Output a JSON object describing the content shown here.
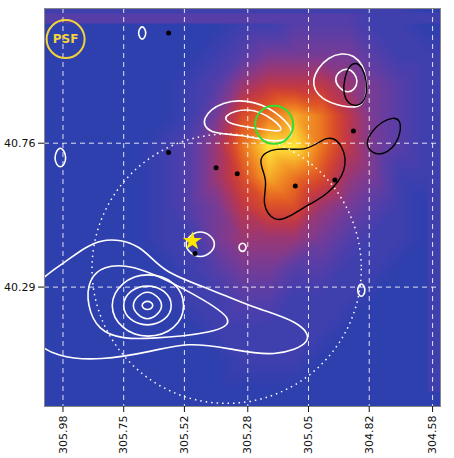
{
  "chart_data": {
    "type": "heatmap",
    "xlim": [
      306.05,
      304.55
    ],
    "ylim": [
      39.9,
      41.2
    ],
    "xticks": [
      305.98,
      305.75,
      305.52,
      305.28,
      305.05,
      304.82,
      304.58
    ],
    "yticks": [
      40.29,
      40.76
    ],
    "grid": true,
    "cells": {
      "x": [
        306.0,
        305.9,
        305.8,
        305.7,
        305.6,
        305.5,
        305.4,
        305.3,
        305.2,
        305.1,
        305.0,
        304.9,
        304.8,
        304.7,
        304.6
      ],
      "y": [
        41.15,
        41.05,
        40.95,
        40.85,
        40.75,
        40.65,
        40.55,
        40.45,
        40.35,
        40.25,
        40.15,
        40.05,
        39.95
      ],
      "values": [
        [
          1,
          1,
          1,
          1,
          1,
          1,
          1,
          2,
          2,
          3,
          3,
          3,
          2,
          2,
          1
        ],
        [
          1,
          1,
          1,
          1,
          1,
          1,
          2,
          3,
          4,
          4,
          4,
          4,
          3,
          2,
          2
        ],
        [
          1,
          1,
          1,
          1,
          1,
          2,
          3,
          5,
          6,
          6,
          6,
          5,
          4,
          3,
          2
        ],
        [
          1,
          1,
          1,
          1,
          1,
          2,
          4,
          7,
          8,
          9,
          8,
          6,
          4,
          3,
          2
        ],
        [
          1,
          1,
          1,
          1,
          2,
          3,
          5,
          8,
          10,
          10,
          8,
          6,
          4,
          3,
          2
        ],
        [
          1,
          1,
          1,
          1,
          2,
          3,
          5,
          7,
          9,
          8,
          7,
          5,
          4,
          2,
          2
        ],
        [
          1,
          1,
          1,
          1,
          2,
          3,
          4,
          6,
          7,
          7,
          5,
          4,
          3,
          2,
          1
        ],
        [
          1,
          1,
          1,
          1,
          2,
          2,
          4,
          5,
          5,
          5,
          4,
          3,
          2,
          2,
          1
        ],
        [
          1,
          1,
          1,
          1,
          1,
          2,
          3,
          4,
          4,
          3,
          3,
          2,
          2,
          1,
          1
        ],
        [
          1,
          1,
          1,
          1,
          1,
          2,
          2,
          3,
          3,
          2,
          2,
          2,
          1,
          1,
          1
        ],
        [
          1,
          1,
          1,
          1,
          1,
          1,
          2,
          2,
          2,
          2,
          2,
          1,
          1,
          1,
          1
        ],
        [
          1,
          1,
          1,
          1,
          1,
          1,
          1,
          2,
          2,
          2,
          1,
          1,
          1,
          1,
          1
        ],
        [
          1,
          1,
          1,
          1,
          1,
          1,
          1,
          1,
          1,
          1,
          1,
          1,
          1,
          1,
          1
        ]
      ]
    },
    "white_contours": {
      "color": "#ffffff",
      "rings": [
        [
          [
            306.12,
            40.29
          ],
          [
            305.97,
            40.37
          ],
          [
            305.84,
            40.46
          ],
          [
            305.68,
            40.43
          ],
          [
            305.61,
            40.34
          ],
          [
            305.41,
            40.28
          ],
          [
            305.25,
            40.22
          ],
          [
            305.09,
            40.18
          ],
          [
            305.02,
            40.11
          ],
          [
            305.18,
            40.06
          ],
          [
            305.35,
            40.09
          ],
          [
            305.51,
            40.11
          ],
          [
            305.64,
            40.08
          ],
          [
            305.84,
            40.05
          ],
          [
            306.0,
            40.06
          ],
          [
            306.12,
            40.12
          ]
        ],
        [
          [
            305.91,
            40.34
          ],
          [
            305.74,
            40.38
          ],
          [
            305.51,
            40.28
          ],
          [
            305.31,
            40.18
          ],
          [
            305.41,
            40.14
          ],
          [
            305.64,
            40.12
          ],
          [
            305.87,
            40.12
          ]
        ],
        [
          [
            305.51,
            40.23
          ],
          [
            305.55,
            40.31
          ],
          [
            305.66,
            40.34
          ],
          [
            305.76,
            40.31
          ],
          [
            305.81,
            40.23
          ],
          [
            305.76,
            40.15
          ],
          [
            305.66,
            40.12
          ],
          [
            305.55,
            40.15
          ]
        ],
        [
          [
            305.56,
            40.23
          ],
          [
            305.59,
            40.28
          ],
          [
            305.66,
            40.3
          ],
          [
            305.73,
            40.28
          ],
          [
            305.76,
            40.23
          ],
          [
            305.73,
            40.18
          ],
          [
            305.66,
            40.16
          ],
          [
            305.59,
            40.18
          ]
        ],
        [
          [
            305.6,
            40.23
          ],
          [
            305.62,
            40.26
          ],
          [
            305.66,
            40.28
          ],
          [
            305.7,
            40.26
          ],
          [
            305.72,
            40.23
          ],
          [
            305.7,
            40.2
          ],
          [
            305.66,
            40.18
          ],
          [
            305.62,
            40.2
          ]
        ],
        [
          [
            305.63,
            40.23
          ],
          [
            305.66,
            40.25
          ],
          [
            305.69,
            40.23
          ],
          [
            305.66,
            40.21
          ]
        ],
        [
          [
            305.46,
            40.84
          ],
          [
            305.38,
            40.9
          ],
          [
            305.25,
            40.9
          ],
          [
            305.15,
            40.85
          ],
          [
            305.09,
            40.78
          ],
          [
            305.18,
            40.76
          ],
          [
            305.31,
            40.79
          ],
          [
            305.43,
            40.79
          ]
        ],
        [
          [
            305.38,
            40.85
          ],
          [
            305.28,
            40.88
          ],
          [
            305.18,
            40.84
          ],
          [
            305.13,
            40.79
          ],
          [
            305.25,
            40.81
          ],
          [
            305.35,
            40.82
          ]
        ],
        [
          [
            305.05,
            40.96
          ],
          [
            304.98,
            41.05
          ],
          [
            304.87,
            41.06
          ],
          [
            304.82,
            40.97
          ],
          [
            304.84,
            40.87
          ],
          [
            304.92,
            40.88
          ],
          [
            305.0,
            40.9
          ]
        ],
        [
          [
            304.97,
            40.97
          ],
          [
            304.9,
            41.02
          ],
          [
            304.85,
            40.96
          ],
          [
            304.9,
            40.91
          ]
        ],
        [
          [
            305.66,
            41.12
          ],
          [
            305.68,
            41.15
          ],
          [
            305.7,
            41.12
          ],
          [
            305.68,
            41.09
          ]
        ],
        [
          [
            305.96,
            40.71
          ],
          [
            305.99,
            40.76
          ],
          [
            306.02,
            40.71
          ],
          [
            305.99,
            40.67
          ]
        ],
        [
          [
            305.38,
            40.43
          ],
          [
            305.46,
            40.49
          ],
          [
            305.54,
            40.43
          ],
          [
            305.46,
            40.37
          ]
        ],
        [
          [
            305.28,
            40.42
          ],
          [
            305.3,
            40.44
          ],
          [
            305.32,
            40.42
          ],
          [
            305.3,
            40.4
          ]
        ],
        [
          [
            304.83,
            40.28
          ],
          [
            304.85,
            40.31
          ],
          [
            304.87,
            40.28
          ],
          [
            304.85,
            40.25
          ]
        ]
      ]
    },
    "black_contours": {
      "color": "#000000",
      "rings": [
        [
          [
            305.25,
            40.71
          ],
          [
            305.18,
            40.75
          ],
          [
            305.05,
            40.73
          ],
          [
            304.98,
            40.79
          ],
          [
            304.92,
            40.76
          ],
          [
            304.9,
            40.67
          ],
          [
            304.98,
            40.59
          ],
          [
            305.05,
            40.56
          ],
          [
            305.12,
            40.52
          ],
          [
            305.18,
            40.5
          ],
          [
            305.23,
            40.56
          ],
          [
            305.2,
            40.64
          ]
        ],
        [
          [
            304.93,
            40.91
          ],
          [
            304.9,
            41.03
          ],
          [
            304.84,
            41.02
          ],
          [
            304.82,
            40.91
          ],
          [
            304.87,
            40.87
          ]
        ],
        [
          [
            304.85,
            40.76
          ],
          [
            304.77,
            40.84
          ],
          [
            304.69,
            40.85
          ],
          [
            304.71,
            40.75
          ],
          [
            304.79,
            40.71
          ]
        ]
      ]
    },
    "black_dots": {
      "color": "#000000",
      "points": [
        [
          305.58,
          41.12
        ],
        [
          305.58,
          40.73
        ],
        [
          305.4,
          40.68
        ],
        [
          304.95,
          40.64
        ],
        [
          305.48,
          40.4
        ],
        [
          305.32,
          40.66
        ],
        [
          305.1,
          40.62
        ],
        [
          304.88,
          40.8
        ]
      ]
    },
    "source": {
      "x": 305.49,
      "y": 40.44,
      "marker": "star",
      "color": "#ffe600"
    },
    "region": {
      "x": 305.36,
      "y": 40.35,
      "radius": 0.51,
      "color": "#ffffff",
      "line_style": "dotted"
    },
    "green_circle": {
      "x": 305.18,
      "y": 40.82,
      "radius": 0.072,
      "color": "#33dd33"
    },
    "psf": {
      "label": "PSF",
      "x": 305.97,
      "y": 41.1,
      "radius": 0.072,
      "color": "#f2d43a"
    }
  }
}
